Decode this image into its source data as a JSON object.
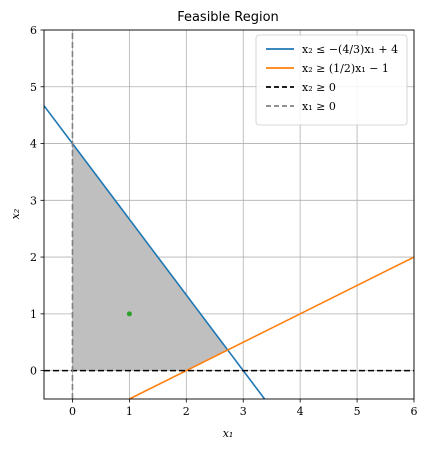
{
  "chart_data": {
    "type": "line",
    "title": "Feasible Region",
    "xlabel": "x₁",
    "ylabel": "x₂",
    "xlim": [
      -0.5,
      6
    ],
    "ylim": [
      -0.5,
      6
    ],
    "xticks": [
      0,
      1,
      2,
      3,
      4,
      5,
      6
    ],
    "yticks": [
      0,
      1,
      2,
      3,
      4,
      5,
      6
    ],
    "grid": true,
    "legend_position": "top-right",
    "series": [
      {
        "name": "x₂ ≤ −(4/3)x₁ + 4",
        "color": "#1f77b4",
        "style": "solid",
        "x": [
          -0.5,
          3.375
        ],
        "y": [
          4.6667,
          -0.5
        ]
      },
      {
        "name": "x₂ ≥ (1/2)x₁ − 1",
        "color": "#ff7f0e",
        "style": "solid",
        "x": [
          1,
          6
        ],
        "y": [
          -0.5,
          2
        ]
      },
      {
        "name": "x₂ ≥ 0",
        "color": "#000000",
        "style": "dashed",
        "x": [
          -0.5,
          6
        ],
        "y": [
          0,
          0
        ]
      },
      {
        "name": "x₁ ≥ 0",
        "color": "#808080",
        "style": "dashed",
        "x": [
          0,
          0
        ],
        "y": [
          -0.5,
          6
        ]
      }
    ],
    "feasible_region": {
      "color": "#bfbfbf",
      "vertices": [
        [
          0,
          0
        ],
        [
          2,
          0
        ],
        [
          2.7273,
          0.3636
        ],
        [
          0,
          4
        ]
      ]
    },
    "points": [
      {
        "x": 1,
        "y": 1,
        "color": "#2ca02c"
      }
    ]
  }
}
